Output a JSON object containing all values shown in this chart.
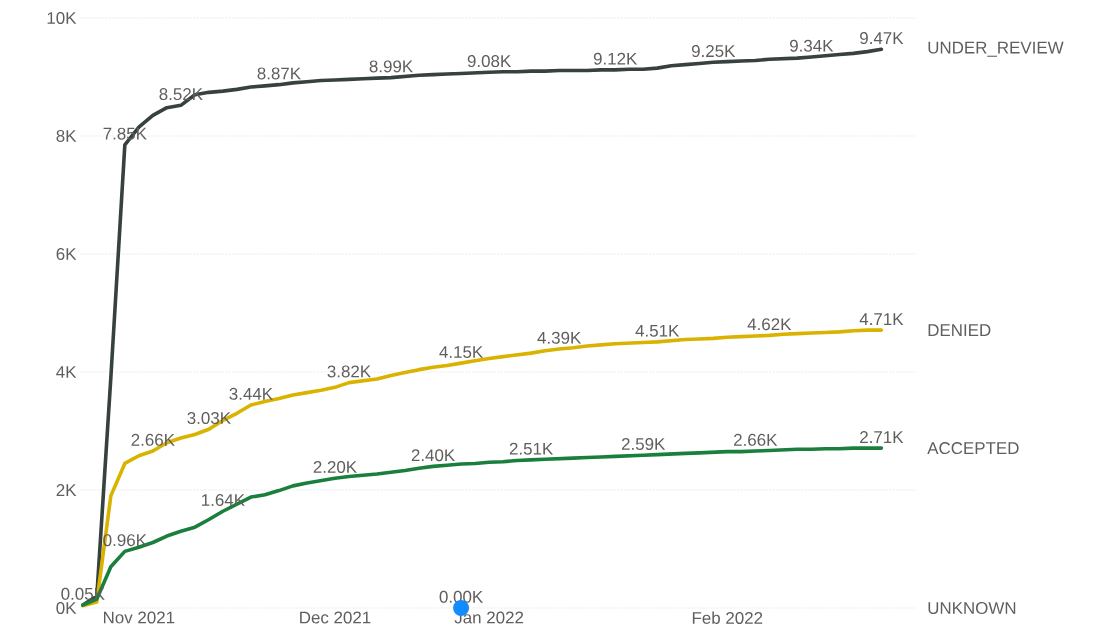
{
  "chart_data": {
    "type": "line",
    "marker": "none",
    "grid": "y",
    "categories": [
      null,
      null,
      null,
      null,
      "Nov 2021",
      null,
      null,
      null,
      null,
      null,
      null,
      null,
      null,
      null,
      null,
      null,
      null,
      null,
      "Dec 2021",
      null,
      null,
      null,
      null,
      null,
      null,
      null,
      null,
      null,
      null,
      "Jan 2022",
      null,
      null,
      null,
      null,
      null,
      null,
      null,
      null,
      null,
      null,
      null,
      null,
      null,
      null,
      null,
      null,
      "Feb 2022",
      null,
      null,
      null,
      null,
      null,
      null,
      null,
      null,
      null,
      null,
      null
    ],
    "ylim": [
      0,
      10000
    ],
    "yticks": [
      {
        "value": 0,
        "label": "0K"
      },
      {
        "value": 2000,
        "label": "2K"
      },
      {
        "value": 4000,
        "label": "4K"
      },
      {
        "value": 6000,
        "label": "6K"
      },
      {
        "value": 8000,
        "label": "8K"
      },
      {
        "value": 10000,
        "label": "10K"
      }
    ],
    "series": [
      {
        "name": "UNDER_REVIEW",
        "color": "#374140",
        "values": [
          50,
          200,
          3900,
          7850,
          8150,
          8350,
          8480,
          8520,
          8700,
          8740,
          8760,
          8790,
          8830,
          8850,
          8870,
          8900,
          8920,
          8940,
          8950,
          8960,
          8970,
          8980,
          8990,
          9010,
          9030,
          9040,
          9050,
          9060,
          9070,
          9080,
          9090,
          9090,
          9100,
          9100,
          9110,
          9110,
          9110,
          9120,
          9120,
          9130,
          9130,
          9150,
          9190,
          9210,
          9230,
          9250,
          9260,
          9270,
          9280,
          9300,
          9310,
          9320,
          9340,
          9360,
          9380,
          9400,
          9430,
          9470
        ],
        "value_labels": [
          null,
          null,
          null,
          "7.85K",
          null,
          null,
          null,
          "8.52K",
          null,
          null,
          null,
          null,
          null,
          null,
          "8.87K",
          null,
          null,
          null,
          null,
          null,
          null,
          null,
          "8.99K",
          null,
          null,
          null,
          null,
          null,
          null,
          "9.08K",
          null,
          null,
          null,
          null,
          null,
          null,
          null,
          null,
          "9.12K",
          null,
          null,
          null,
          null,
          null,
          null,
          "9.25K",
          null,
          null,
          null,
          null,
          null,
          null,
          "9.34K",
          null,
          null,
          null,
          null,
          "9.47K"
        ]
      },
      {
        "name": "DENIED",
        "color": "#d9b300",
        "values": [
          40,
          100,
          1900,
          2450,
          2580,
          2660,
          2800,
          2880,
          2940,
          3030,
          3180,
          3300,
          3440,
          3500,
          3550,
          3610,
          3650,
          3690,
          3740,
          3820,
          3850,
          3880,
          3940,
          3990,
          4040,
          4080,
          4110,
          4150,
          4190,
          4230,
          4260,
          4290,
          4320,
          4360,
          4390,
          4410,
          4440,
          4460,
          4480,
          4490,
          4500,
          4510,
          4530,
          4550,
          4560,
          4570,
          4590,
          4600,
          4610,
          4620,
          4640,
          4650,
          4660,
          4670,
          4680,
          4700,
          4710,
          4710
        ],
        "value_labels": [
          null,
          null,
          null,
          null,
          null,
          "2.66K",
          null,
          null,
          null,
          "3.03K",
          null,
          null,
          "3.44K",
          null,
          null,
          null,
          null,
          null,
          null,
          "3.82K",
          null,
          null,
          null,
          null,
          null,
          null,
          null,
          "4.15K",
          null,
          null,
          null,
          null,
          null,
          null,
          "4.39K",
          null,
          null,
          null,
          null,
          null,
          null,
          "4.51K",
          null,
          null,
          null,
          null,
          null,
          null,
          null,
          "4.62K",
          null,
          null,
          null,
          null,
          null,
          null,
          null,
          "4.71K"
        ]
      },
      {
        "name": "ACCEPTED",
        "color": "#1a7f3c",
        "values": [
          50,
          150,
          700,
          960,
          1030,
          1110,
          1220,
          1300,
          1370,
          1500,
          1640,
          1760,
          1880,
          1920,
          1990,
          2070,
          2120,
          2160,
          2200,
          2230,
          2250,
          2270,
          2300,
          2330,
          2370,
          2400,
          2420,
          2440,
          2450,
          2470,
          2480,
          2500,
          2510,
          2520,
          2530,
          2540,
          2550,
          2560,
          2570,
          2580,
          2590,
          2600,
          2610,
          2620,
          2630,
          2640,
          2650,
          2650,
          2660,
          2670,
          2680,
          2690,
          2690,
          2700,
          2700,
          2710,
          2710,
          2710
        ],
        "value_labels": [
          "0.05K",
          null,
          null,
          "0.96K",
          null,
          null,
          null,
          null,
          null,
          null,
          "1.64K",
          null,
          null,
          null,
          null,
          null,
          null,
          null,
          "2.20K",
          null,
          null,
          null,
          null,
          null,
          null,
          "2.40K",
          null,
          null,
          null,
          null,
          null,
          null,
          "2.51K",
          null,
          null,
          null,
          null,
          null,
          null,
          null,
          "2.59K",
          null,
          null,
          null,
          null,
          null,
          null,
          null,
          "2.66K",
          null,
          null,
          null,
          null,
          null,
          null,
          null,
          null,
          "2.71K"
        ]
      },
      {
        "name": "UNKNOWN",
        "type": "scatter",
        "marker": "circle",
        "color": "#118dff",
        "values": [
          null,
          null,
          null,
          null,
          null,
          null,
          null,
          null,
          null,
          null,
          null,
          null,
          null,
          null,
          null,
          null,
          null,
          null,
          null,
          null,
          null,
          null,
          null,
          null,
          null,
          null,
          null,
          0,
          null,
          null,
          null,
          null,
          null,
          null,
          null,
          null,
          null,
          null,
          null,
          null,
          null,
          null,
          null,
          null,
          null,
          null,
          null,
          null,
          null,
          null,
          null,
          null,
          null,
          null,
          null,
          null,
          null,
          null
        ],
        "value_labels": [
          null,
          null,
          null,
          null,
          null,
          null,
          null,
          null,
          null,
          null,
          null,
          null,
          null,
          null,
          null,
          null,
          null,
          null,
          null,
          null,
          null,
          null,
          null,
          null,
          null,
          null,
          null,
          "0.00K",
          null,
          null,
          null,
          null,
          null,
          null,
          null,
          null,
          null,
          null,
          null,
          null,
          null,
          null,
          null,
          null,
          null,
          null,
          null,
          null,
          null,
          null,
          null,
          null,
          null,
          null,
          null,
          null,
          null,
          null
        ]
      }
    ]
  }
}
